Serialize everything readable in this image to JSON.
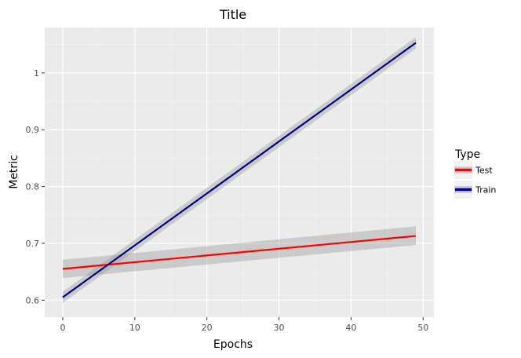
{
  "chart_data": {
    "type": "line",
    "title": "Title",
    "xlabel": "Epochs",
    "ylabel": "Metric",
    "xlim": [
      -2.5,
      51.5
    ],
    "ylim": [
      0.57,
      1.08
    ],
    "x_ticks": [
      0,
      10,
      20,
      30,
      40,
      50
    ],
    "x_tick_labels": [
      "0",
      "10",
      "20",
      "30",
      "40",
      "50"
    ],
    "y_ticks": [
      0.6,
      0.7,
      0.8,
      0.9,
      1.0
    ],
    "y_tick_labels": [
      "0.6",
      "0.7",
      "0.8",
      "0.9",
      "1"
    ],
    "grid": true,
    "legend": {
      "title": "Type",
      "position": "right"
    },
    "series": [
      {
        "name": "Test",
        "color": "#ff0000",
        "x": [
          0,
          49
        ],
        "y": [
          0.655,
          0.713
        ],
        "ci_lower": [
          0.639,
          0.697
        ],
        "ci_upper": [
          0.671,
          0.73
        ]
      },
      {
        "name": "Train",
        "color": "#00008b",
        "x": [
          0,
          49
        ],
        "y": [
          0.605,
          1.053
        ],
        "ci_lower": [
          0.595,
          1.043
        ],
        "ci_upper": [
          0.615,
          1.063
        ]
      }
    ]
  }
}
